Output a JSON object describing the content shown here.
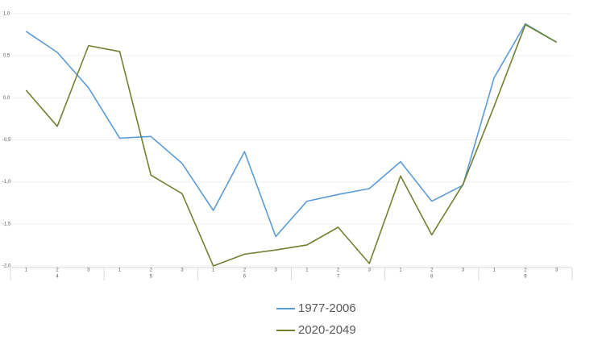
{
  "chart_data": {
    "type": "line",
    "categories": [
      "1",
      "2",
      "3",
      "1",
      "2",
      "3",
      "1",
      "2",
      "3",
      "1",
      "2",
      "3",
      "1",
      "2",
      "3",
      "1",
      "2",
      "3"
    ],
    "groups": [
      "4",
      "5",
      "6",
      "7",
      "8",
      "9"
    ],
    "series": [
      {
        "name": "1977-2006",
        "color": "#5b9bd5",
        "values": [
          0.79,
          0.54,
          0.12,
          -0.48,
          -0.46,
          -0.78,
          -1.34,
          -0.64,
          -1.65,
          -1.23,
          -1.15,
          -1.08,
          -0.76,
          -1.23,
          -1.04,
          0.24,
          0.88,
          0.66
        ]
      },
      {
        "name": "2020-2049",
        "color": "#6f8132",
        "values": [
          0.09,
          -0.34,
          0.62,
          0.55,
          -0.92,
          -1.14,
          -2.0,
          -1.86,
          -1.81,
          -1.75,
          -1.54,
          -1.97,
          -0.93,
          -1.63,
          -1.03,
          -0.1,
          0.87,
          0.66
        ]
      }
    ],
    "ylim": [
      -2,
      1
    ],
    "yticks": [
      {
        "value": 1,
        "label": "1,0"
      },
      {
        "value": 0.5,
        "label": "0,5"
      },
      {
        "value": 0,
        "label": "0,0"
      },
      {
        "value": -0.5,
        "label": "-0,5"
      },
      {
        "value": -1,
        "label": "-1,0"
      },
      {
        "value": -1.5,
        "label": "-1,5"
      },
      {
        "value": -2,
        "label": "-2,0"
      }
    ],
    "grid": true
  }
}
